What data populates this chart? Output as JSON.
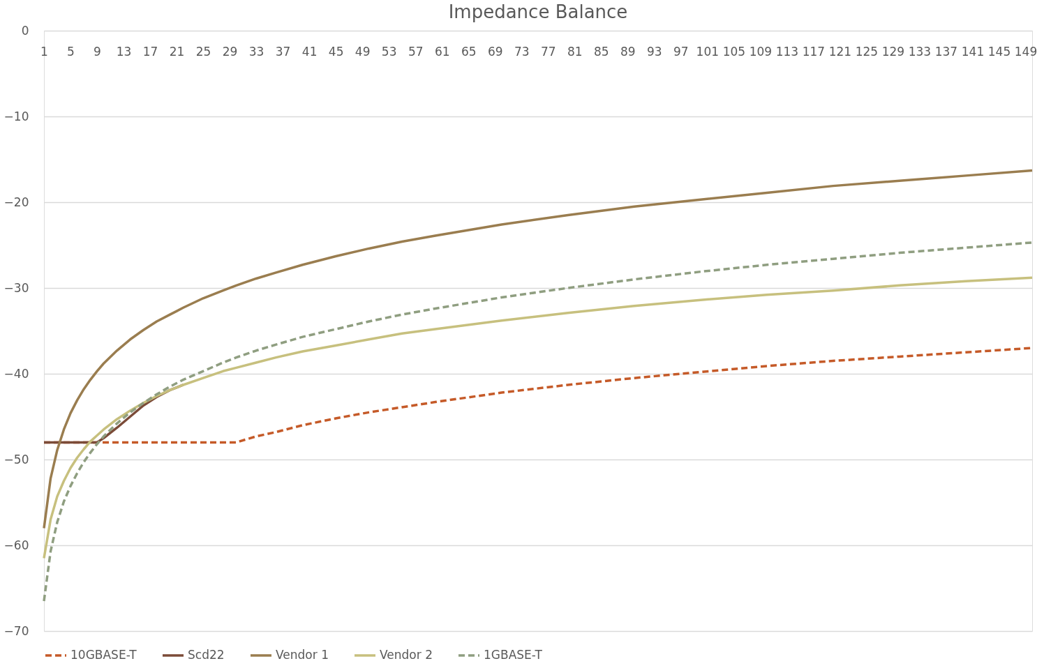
{
  "chart_data": {
    "type": "line",
    "title": "Impedance Balance",
    "xlim": [
      1,
      150
    ],
    "xticks": [
      1,
      5,
      9,
      13,
      17,
      21,
      25,
      29,
      33,
      37,
      41,
      45,
      49,
      53,
      57,
      61,
      65,
      69,
      73,
      77,
      81,
      85,
      89,
      93,
      97,
      101,
      105,
      109,
      113,
      117,
      121,
      125,
      129,
      133,
      137,
      141,
      145,
      149
    ],
    "ylim": [
      -70,
      0
    ],
    "yticks": [
      -70,
      -60,
      -50,
      -40,
      -30,
      -20,
      -10,
      0
    ],
    "grid": "y",
    "legend": "bottom",
    "series": [
      {
        "name": "10GBASE-T",
        "color": "#c55a28",
        "line_style": "dashed",
        "x": [
          1,
          30,
          33,
          36,
          40,
          45,
          50,
          55,
          60,
          70,
          80,
          90,
          100,
          110,
          120,
          130,
          140,
          150
        ],
        "values": [
          -48,
          -48,
          -47.3,
          -46.8,
          -46.0,
          -45.2,
          -44.5,
          -43.9,
          -43.3,
          -42.2,
          -41.3,
          -40.5,
          -39.8,
          -39.1,
          -38.5,
          -38.0,
          -37.5,
          -37.0
        ]
      },
      {
        "name": "Scd22",
        "color": "#7b4b38",
        "line_style": "solid",
        "x": [
          1,
          9,
          10,
          12,
          14,
          16,
          18,
          20,
          22
        ],
        "values": [
          -48,
          -48,
          -47.5,
          -46.3,
          -45.0,
          -43.7,
          -42.7,
          -41.9,
          -41.3
        ]
      },
      {
        "name": "Vendor 1",
        "color": "#9a7d4f",
        "line_style": "solid",
        "x": [
          1,
          2,
          3,
          4,
          5,
          6,
          7,
          8,
          9,
          10,
          12,
          14,
          16,
          18,
          20,
          22,
          25,
          28,
          30,
          33,
          36,
          40,
          45,
          50,
          55,
          60,
          70,
          80,
          90,
          100,
          110,
          120,
          130,
          140,
          150
        ],
        "values": [
          -58.0,
          -52.2,
          -48.9,
          -46.5,
          -44.6,
          -43.1,
          -41.8,
          -40.7,
          -39.7,
          -38.8,
          -37.3,
          -36.0,
          -34.9,
          -33.9,
          -33.1,
          -32.3,
          -31.2,
          -30.3,
          -29.7,
          -28.9,
          -28.2,
          -27.3,
          -26.3,
          -25.4,
          -24.6,
          -23.9,
          -22.6,
          -21.5,
          -20.5,
          -19.7,
          -18.9,
          -18.1,
          -17.5,
          -16.9,
          -16.3
        ]
      },
      {
        "name": "Vendor 2",
        "color": "#c7c07e",
        "line_style": "solid",
        "x": [
          1,
          2,
          3,
          4,
          5,
          6,
          7,
          8,
          9,
          10,
          12,
          14,
          16,
          18,
          20,
          22,
          25,
          28,
          30,
          33,
          36,
          40,
          45,
          50,
          55,
          60,
          70,
          80,
          90,
          100,
          110,
          120,
          130,
          140,
          150
        ],
        "values": [
          -61.5,
          -57.0,
          -54.3,
          -52.5,
          -51.0,
          -49.8,
          -48.8,
          -47.9,
          -47.2,
          -46.5,
          -45.3,
          -44.3,
          -43.4,
          -42.6,
          -41.9,
          -41.3,
          -40.5,
          -39.7,
          -39.3,
          -38.7,
          -38.1,
          -37.4,
          -36.7,
          -36.0,
          -35.3,
          -34.8,
          -33.8,
          -32.9,
          -32.1,
          -31.4,
          -30.8,
          -30.3,
          -29.7,
          -29.2,
          -28.8
        ]
      },
      {
        "name": "1GBASE-T",
        "color": "#8f9e80",
        "line_style": "dashed",
        "x": [
          1,
          2,
          3,
          4,
          5,
          6,
          7,
          8,
          9,
          10,
          12,
          14,
          16,
          18,
          20,
          22,
          25,
          28,
          30,
          33,
          36,
          40,
          45,
          50,
          55,
          60,
          70,
          80,
          90,
          100,
          110,
          120,
          130,
          140,
          150
        ],
        "values": [
          -66.5,
          -60.7,
          -57.3,
          -54.9,
          -53.1,
          -51.6,
          -50.3,
          -49.2,
          -48.2,
          -47.3,
          -45.8,
          -44.5,
          -43.4,
          -42.4,
          -41.5,
          -40.7,
          -39.7,
          -38.7,
          -38.1,
          -37.3,
          -36.6,
          -35.7,
          -34.8,
          -33.9,
          -33.1,
          -32.4,
          -31.1,
          -30.0,
          -29.0,
          -28.1,
          -27.3,
          -26.6,
          -25.9,
          -25.3,
          -24.7
        ]
      }
    ]
  }
}
